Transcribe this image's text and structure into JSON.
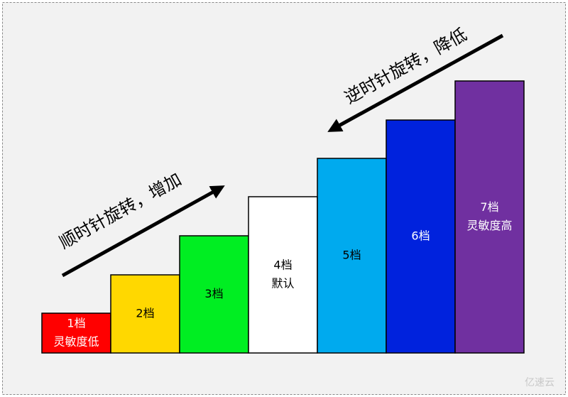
{
  "steps": [
    {
      "lines": [
        "1档",
        "灵敏度低"
      ],
      "color": "#ff0000",
      "text_color": "#ffffff"
    },
    {
      "lines": [
        "2档"
      ],
      "color": "#ffd800",
      "text_color": "#000000"
    },
    {
      "lines": [
        "3档"
      ],
      "color": "#00ee22",
      "text_color": "#000000"
    },
    {
      "lines": [
        "4档",
        "默认"
      ],
      "color": "#ffffff",
      "text_color": "#000000"
    },
    {
      "lines": [
        "5档"
      ],
      "color": "#00aaee",
      "text_color": "#000000"
    },
    {
      "lines": [
        "6档"
      ],
      "color": "#0022dd",
      "text_color": "#ffffff"
    },
    {
      "lines": [
        "7档",
        "灵敏度高"
      ],
      "color": "#7030a0",
      "text_color": "#ffffff"
    }
  ],
  "arrows": {
    "increase": "顺时针旋转，增加",
    "decrease": "逆时针旋转，降低"
  },
  "watermark": "亿速云"
}
